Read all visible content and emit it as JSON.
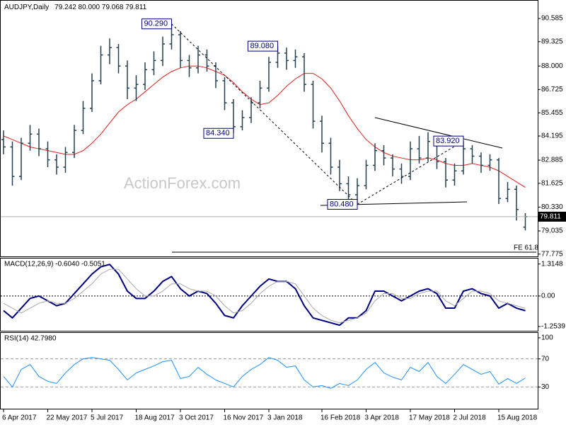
{
  "watermark": "ActionForex.com",
  "chart_data": [
    {
      "type": "ohlc",
      "title": "AUDJPY,Daily",
      "subtitle": "79.242 80.000 79.068 79.811",
      "color": "#24404f",
      "ma_color": "#e0201c",
      "last_line_color": "#b0b0b0",
      "categories": [
        "6 Apr 2017",
        null,
        null,
        null,
        null,
        "22 May 2017",
        null,
        null,
        null,
        null,
        "5 Jul 2017",
        null,
        null,
        null,
        null,
        "18 Aug 2017",
        null,
        null,
        null,
        null,
        "3 Oct 2017",
        null,
        null,
        null,
        null,
        "16 Nov 2017",
        null,
        null,
        null,
        null,
        "3 Jan 2018",
        null,
        null,
        null,
        null,
        null,
        "16 Feb 2018",
        null,
        null,
        null,
        null,
        "3 Apr 2018",
        null,
        null,
        null,
        null,
        "17 May 2018",
        null,
        null,
        null,
        null,
        "2 Jul 2018",
        null,
        null,
        null,
        null,
        "15 Aug 2018",
        null,
        null,
        null
      ],
      "open": [
        84.0,
        83.6,
        82.0,
        83.8,
        84.3,
        83.5,
        82.9,
        82.5,
        83.3,
        84.5,
        85.7,
        87.2,
        88.6,
        89.0,
        88.0,
        86.8,
        87.0,
        87.8,
        88.3,
        89.2,
        89.7,
        88.3,
        87.9,
        88.6,
        88.0,
        87.2,
        86.0,
        84.7,
        85.2,
        86.0,
        86.8,
        88.2,
        88.7,
        88.3,
        88.5,
        87.0,
        85.0,
        83.8,
        82.5,
        81.6,
        81.0,
        81.5,
        82.6,
        83.4,
        83.0,
        82.4,
        82.0,
        83.5,
        83.0,
        83.9,
        82.8,
        81.8,
        82.3,
        83.5,
        83.1,
        82.6,
        82.9,
        80.8,
        81.3,
        79.242
      ],
      "high": [
        84.5,
        83.9,
        84.1,
        84.8,
        84.6,
        83.9,
        83.2,
        83.6,
        84.8,
        86.1,
        87.6,
        89.1,
        89.5,
        89.2,
        88.3,
        87.5,
        88.2,
        88.8,
        89.6,
        90.29,
        89.9,
        88.6,
        89.1,
        88.9,
        88.2,
        87.4,
        86.2,
        85.6,
        86.3,
        87.2,
        88.5,
        89.08,
        89.0,
        88.9,
        88.7,
        87.2,
        85.3,
        84.1,
        82.9,
        82.0,
        81.9,
        82.9,
        83.8,
        83.7,
        83.2,
        82.7,
        83.9,
        84.2,
        84.4,
        84.1,
        83.0,
        82.7,
        83.92,
        83.7,
        83.3,
        83.2,
        83.0,
        81.7,
        81.5,
        80.0
      ],
      "low": [
        83.2,
        81.5,
        81.8,
        83.4,
        83.1,
        82.5,
        82.1,
        82.2,
        83.0,
        84.3,
        85.5,
        87.0,
        88.1,
        87.6,
        86.2,
        86.1,
        86.7,
        87.5,
        88.0,
        88.9,
        87.9,
        87.4,
        87.6,
        87.7,
        86.8,
        85.6,
        84.34,
        84.5,
        84.9,
        85.7,
        86.6,
        87.9,
        87.8,
        87.9,
        86.6,
        84.6,
        83.3,
        82.1,
        81.2,
        80.7,
        80.48,
        81.3,
        82.3,
        82.6,
        82.0,
        81.6,
        81.8,
        82.7,
        82.8,
        82.4,
        81.4,
        81.5,
        82.1,
        82.7,
        82.2,
        82.3,
        80.5,
        80.6,
        79.6,
        79.068
      ],
      "close": [
        83.6,
        82.0,
        83.8,
        84.3,
        83.5,
        82.9,
        82.5,
        83.3,
        84.5,
        85.7,
        87.2,
        88.6,
        89.0,
        88.0,
        86.8,
        87.0,
        87.8,
        88.3,
        89.2,
        89.7,
        88.3,
        87.9,
        88.6,
        88.0,
        87.2,
        86.0,
        84.7,
        85.2,
        86.0,
        86.8,
        88.2,
        88.7,
        88.3,
        88.5,
        87.0,
        85.0,
        83.8,
        82.5,
        81.6,
        81.0,
        81.5,
        82.6,
        83.4,
        83.0,
        82.4,
        82.0,
        83.5,
        83.0,
        83.9,
        82.8,
        81.8,
        82.3,
        83.5,
        83.1,
        82.6,
        82.9,
        80.8,
        81.3,
        80.2,
        79.811
      ],
      "ma": [
        84.2,
        84.0,
        83.8,
        83.6,
        83.5,
        83.4,
        83.3,
        83.2,
        83.2,
        83.4,
        83.8,
        84.3,
        84.9,
        85.5,
        85.9,
        86.2,
        86.6,
        87.0,
        87.4,
        87.7,
        87.9,
        88.0,
        88.0,
        87.9,
        87.7,
        87.5,
        87.1,
        86.6,
        86.2,
        85.9,
        86.0,
        86.4,
        86.9,
        87.3,
        87.6,
        87.6,
        87.3,
        86.8,
        86.1,
        85.3,
        84.6,
        84.0,
        83.6,
        83.3,
        83.1,
        83.0,
        82.9,
        82.9,
        83.0,
        82.9,
        82.7,
        82.6,
        82.6,
        82.7,
        82.6,
        82.5,
        82.3,
        82.0,
        81.7,
        81.4
      ],
      "annotations": [
        {
          "text": "90.290",
          "value": 90.29
        },
        {
          "text": "89.080",
          "value": 89.08
        },
        {
          "text": "84.340",
          "value": 84.34
        },
        {
          "text": "80.480",
          "value": 80.48
        },
        {
          "text": "83.920",
          "value": 83.92
        }
      ],
      "fe_label": "FE 61.8",
      "ylim": [
        77.65,
        91.55
      ],
      "yticks": [
        77.775,
        79.035,
        {
          "value": 80.33,
          "label": "80.330"
        },
        81.625,
        82.885,
        84.195,
        85.455,
        86.725,
        {
          "value": 88,
          "label": "88.000"
        },
        89.325,
        90.585
      ]
    },
    {
      "type": "line",
      "title": "MACD(12,26,9) -0.6040 -0.5051",
      "series": [
        {
          "color": "#000080",
          "width": 2,
          "values": [
            -0.6,
            -0.9,
            -0.5,
            -0.1,
            0.0,
            -0.2,
            -0.4,
            -0.3,
            0.1,
            0.5,
            0.9,
            1.2,
            1.3,
            0.9,
            0.2,
            -0.1,
            -0.1,
            0.2,
            0.6,
            0.8,
            0.3,
            0.0,
            0.2,
            0.1,
            -0.3,
            -0.8,
            -0.9,
            -0.4,
            0.0,
            0.4,
            0.7,
            0.6,
            0.6,
            0.3,
            -0.4,
            -0.9,
            -1.0,
            -1.1,
            -1.2,
            -0.9,
            -0.9,
            -0.6,
            0.2,
            0.2,
            0.0,
            -0.2,
            0.0,
            0.2,
            0.3,
            0.1,
            -0.5,
            -0.5,
            0.2,
            0.3,
            0.1,
            0.0,
            -0.5,
            -0.3,
            -0.5,
            -0.604
          ]
        },
        {
          "color": "#a8a8a8",
          "width": 1,
          "values": [
            -0.3,
            -0.5,
            -0.7,
            -0.5,
            -0.3,
            -0.2,
            -0.3,
            -0.3,
            -0.1,
            0.2,
            0.5,
            0.9,
            1.1,
            1.1,
            0.7,
            0.3,
            0.0,
            0.0,
            0.2,
            0.5,
            0.5,
            0.3,
            0.2,
            0.2,
            0.0,
            -0.4,
            -0.7,
            -0.6,
            -0.3,
            0.1,
            0.4,
            0.6,
            0.6,
            0.5,
            0.0,
            -0.5,
            -0.8,
            -1.0,
            -1.1,
            -1.0,
            -0.9,
            -0.7,
            -0.2,
            0.1,
            0.1,
            -0.1,
            -0.1,
            0.1,
            0.2,
            0.2,
            -0.2,
            -0.4,
            -0.1,
            0.2,
            0.2,
            0.1,
            -0.2,
            -0.3,
            -0.4,
            -0.5051
          ]
        }
      ],
      "ylim": [
        -1.43,
        1.54
      ],
      "yticks": [
        1.3148,
        {
          "value": 0,
          "label": "0.00"
        },
        -1.2539
      ]
    },
    {
      "type": "line",
      "title": "RSI(14) 42.7980",
      "series": [
        {
          "color": "#1e90ff",
          "width": 1,
          "values": [
            45,
            30,
            55,
            62,
            45,
            38,
            35,
            50,
            62,
            70,
            72,
            70,
            68,
            55,
            40,
            50,
            55,
            60,
            66,
            68,
            42,
            45,
            58,
            48,
            40,
            35,
            30,
            45,
            55,
            62,
            72,
            68,
            58,
            60,
            40,
            30,
            32,
            28,
            35,
            32,
            40,
            55,
            65,
            50,
            44,
            40,
            58,
            52,
            65,
            45,
            35,
            48,
            62,
            55,
            48,
            52,
            34,
            42,
            35,
            42.798
          ]
        }
      ],
      "ylim": [
        -2,
        107
      ],
      "yticks": [
        100,
        70,
        30
      ]
    }
  ]
}
